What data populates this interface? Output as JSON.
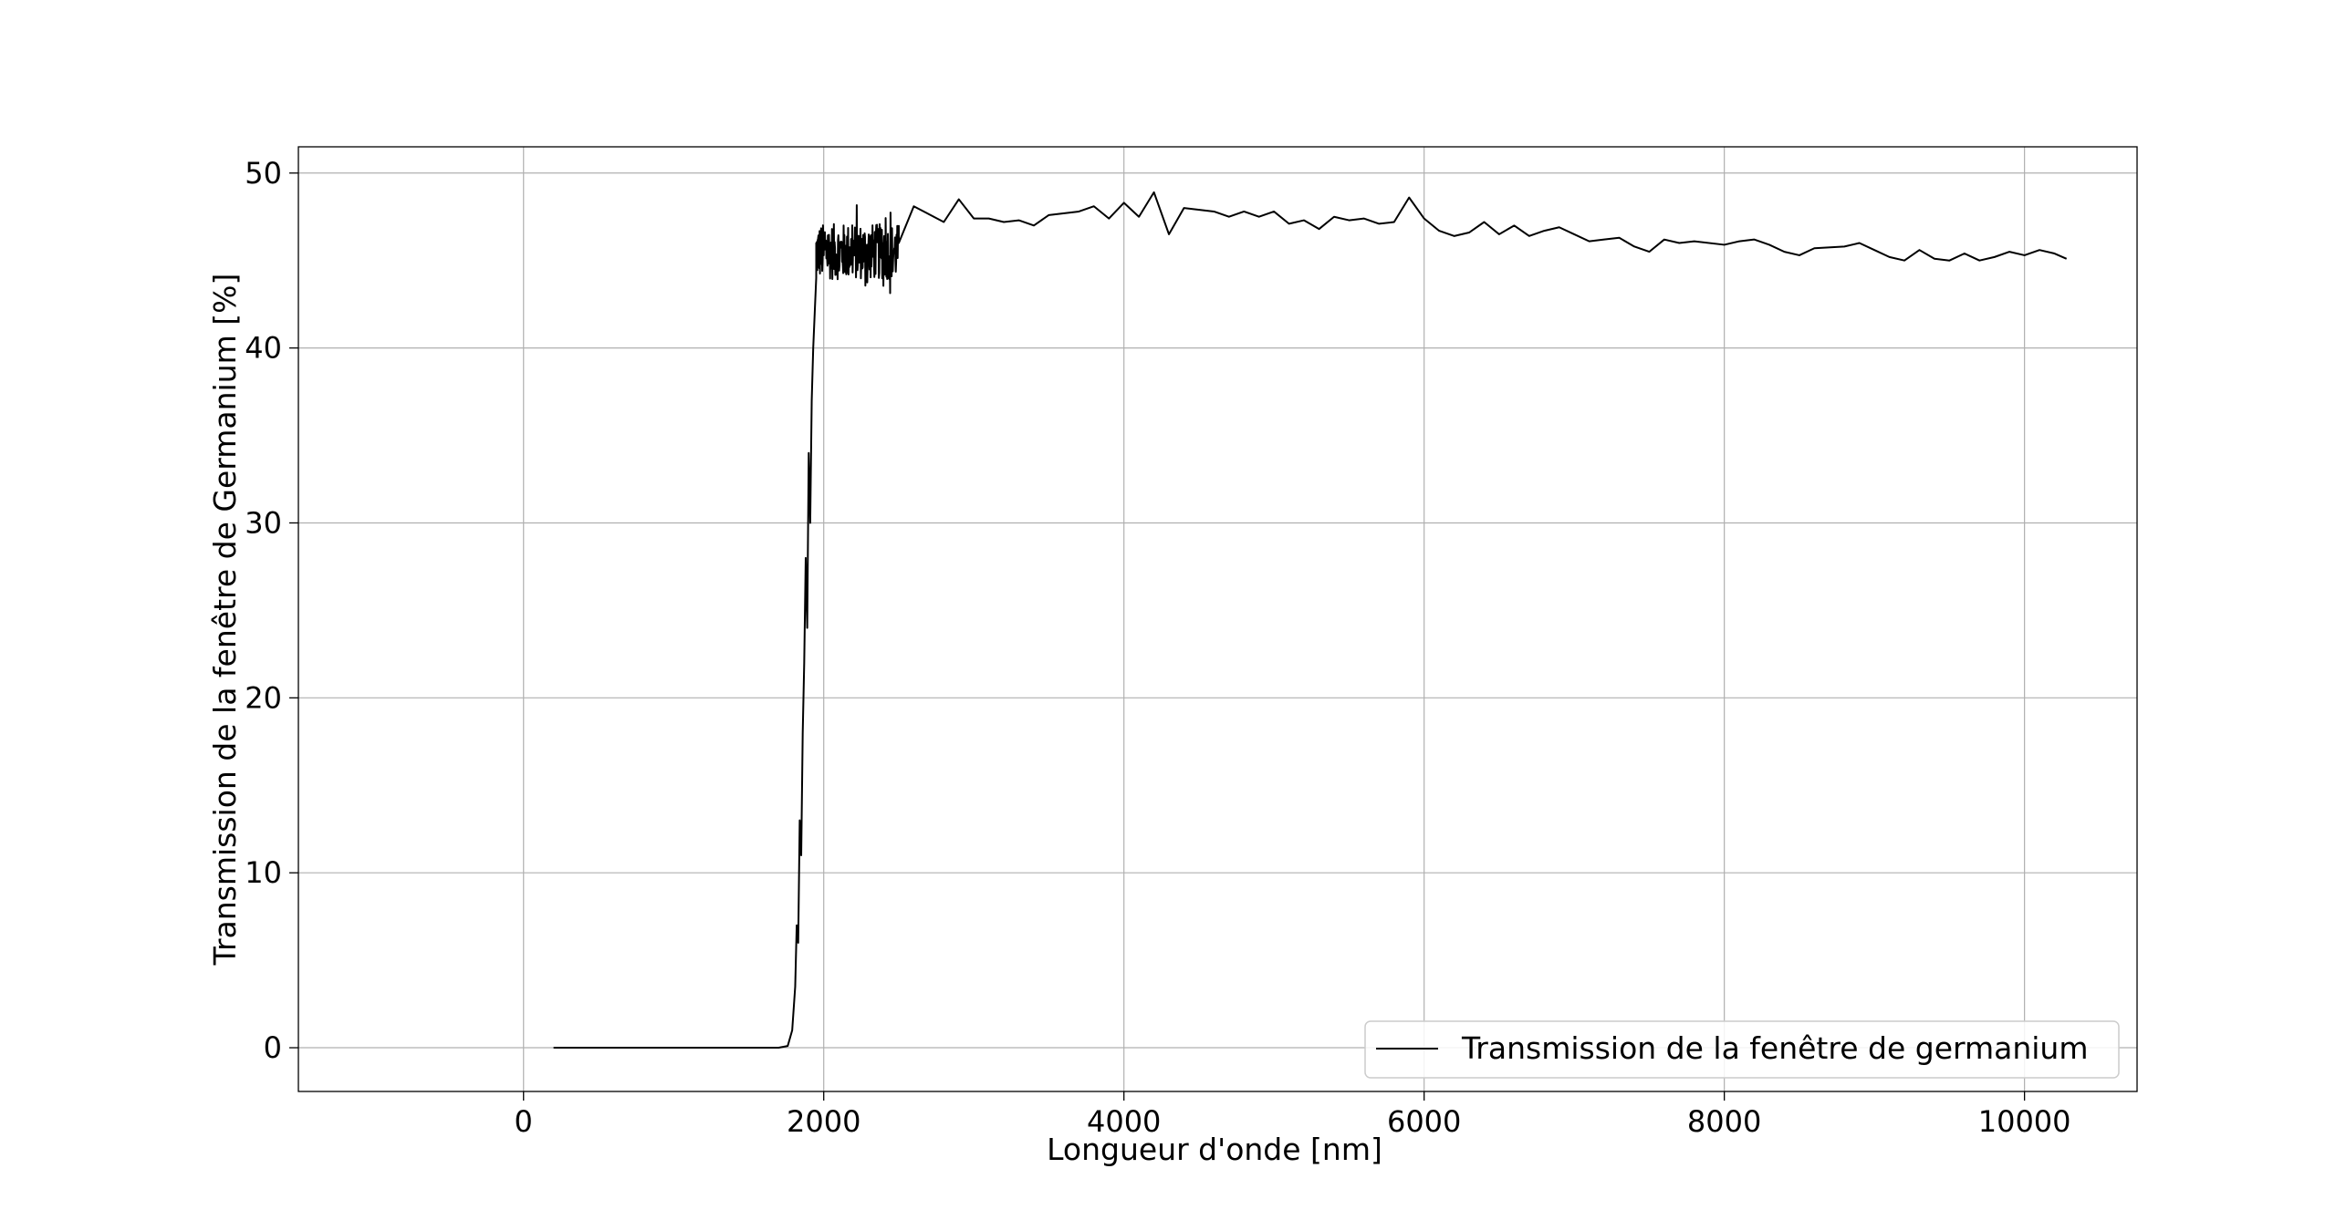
{
  "chart_data": {
    "type": "line",
    "title": "",
    "xlabel": "Longueur d'onde [nm]",
    "ylabel": "Transmission de la fenêtre de Germanium [%]",
    "xlim": [
      -1500,
      10750
    ],
    "ylim": [
      -2.5,
      51.5
    ],
    "xticks": [
      0,
      2000,
      4000,
      6000,
      8000,
      10000
    ],
    "yticks": [
      0,
      10,
      20,
      30,
      40,
      50
    ],
    "grid": true,
    "legend_position": "lower-right",
    "line_color": "#000000",
    "series": [
      {
        "name": "Transmission de la fenêtre de germanium",
        "low_region": [
          [
            200,
            0
          ],
          [
            600,
            0
          ],
          [
            1000,
            0
          ],
          [
            1400,
            0
          ],
          [
            1700,
            0
          ],
          [
            1760,
            0.1
          ],
          [
            1790,
            1.0
          ],
          [
            1810,
            3.5
          ]
        ],
        "rise_region": [
          [
            1820,
            7
          ],
          [
            1830,
            6
          ],
          [
            1840,
            13
          ],
          [
            1850,
            11
          ],
          [
            1860,
            18
          ],
          [
            1870,
            22
          ],
          [
            1880,
            28
          ],
          [
            1890,
            24
          ],
          [
            1900,
            34
          ],
          [
            1910,
            30
          ],
          [
            1920,
            37
          ],
          [
            1930,
            40
          ],
          [
            1940,
            42
          ],
          [
            1950,
            44
          ]
        ],
        "noisy_range": [
          1950,
          2500
        ],
        "noisy_mean": 45.5,
        "noisy_amplitude": 2.0,
        "smooth_region": [
          [
            2500,
            46.0
          ],
          [
            2600,
            48.1
          ],
          [
            2800,
            47.2
          ],
          [
            2900,
            48.5
          ],
          [
            3000,
            47.4
          ],
          [
            3100,
            47.4
          ],
          [
            3200,
            47.2
          ],
          [
            3300,
            47.3
          ],
          [
            3400,
            47.0
          ],
          [
            3500,
            47.6
          ],
          [
            3700,
            47.8
          ],
          [
            3800,
            48.1
          ],
          [
            3900,
            47.4
          ],
          [
            4000,
            48.3
          ],
          [
            4100,
            47.5
          ],
          [
            4200,
            48.9
          ],
          [
            4300,
            46.5
          ],
          [
            4400,
            48.0
          ],
          [
            4600,
            47.8
          ],
          [
            4700,
            47.5
          ],
          [
            4800,
            47.8
          ],
          [
            4900,
            47.5
          ],
          [
            5000,
            47.8
          ],
          [
            5100,
            47.1
          ],
          [
            5200,
            47.3
          ],
          [
            5300,
            46.8
          ],
          [
            5400,
            47.5
          ],
          [
            5500,
            47.3
          ],
          [
            5600,
            47.4
          ],
          [
            5700,
            47.1
          ],
          [
            5800,
            47.2
          ],
          [
            5900,
            48.6
          ],
          [
            6000,
            47.4
          ],
          [
            6100,
            46.7
          ],
          [
            6200,
            46.4
          ],
          [
            6300,
            46.6
          ],
          [
            6400,
            47.2
          ],
          [
            6500,
            46.5
          ],
          [
            6600,
            47.0
          ],
          [
            6700,
            46.4
          ],
          [
            6800,
            46.7
          ],
          [
            6900,
            46.9
          ],
          [
            7000,
            46.5
          ],
          [
            7100,
            46.1
          ],
          [
            7200,
            46.2
          ],
          [
            7300,
            46.3
          ],
          [
            7400,
            45.8
          ],
          [
            7500,
            45.5
          ],
          [
            7600,
            46.2
          ],
          [
            7700,
            46.0
          ],
          [
            7800,
            46.1
          ],
          [
            8000,
            45.9
          ],
          [
            8100,
            46.1
          ],
          [
            8200,
            46.2
          ],
          [
            8300,
            45.9
          ],
          [
            8400,
            45.5
          ],
          [
            8500,
            45.3
          ],
          [
            8600,
            45.7
          ],
          [
            8800,
            45.8
          ],
          [
            8900,
            46.0
          ],
          [
            9000,
            45.6
          ],
          [
            9100,
            45.2
          ],
          [
            9200,
            45.0
          ],
          [
            9300,
            45.6
          ],
          [
            9400,
            45.1
          ],
          [
            9500,
            45.0
          ],
          [
            9600,
            45.4
          ],
          [
            9700,
            45.0
          ],
          [
            9800,
            45.2
          ],
          [
            9900,
            45.5
          ],
          [
            10000,
            45.3
          ],
          [
            10100,
            45.6
          ],
          [
            10200,
            45.4
          ],
          [
            10280,
            45.1
          ]
        ]
      }
    ]
  }
}
